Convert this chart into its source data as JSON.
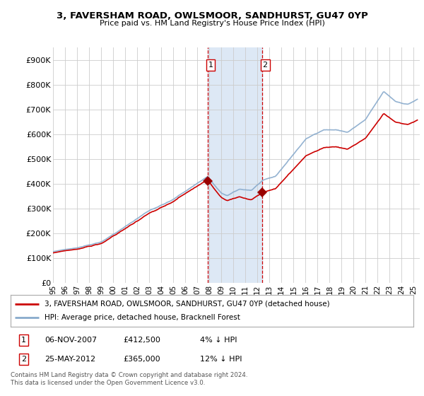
{
  "title": "3, FAVERSHAM ROAD, OWLSMOOR, SANDHURST, GU47 0YP",
  "subtitle": "Price paid vs. HM Land Registry's House Price Index (HPI)",
  "ylabel_ticks": [
    "£0",
    "£100K",
    "£200K",
    "£300K",
    "£400K",
    "£500K",
    "£600K",
    "£700K",
    "£800K",
    "£900K"
  ],
  "ytick_vals": [
    0,
    100000,
    200000,
    300000,
    400000,
    500000,
    600000,
    700000,
    800000,
    900000
  ],
  "ylim": [
    0,
    950000
  ],
  "sale1_date": 2007.85,
  "sale1_price": 412500,
  "sale1_label": "1",
  "sale2_date": 2012.39,
  "sale2_price": 365000,
  "sale2_label": "2",
  "shade_xmin": 2007.85,
  "shade_xmax": 2012.39,
  "line_color_property": "#cc0000",
  "line_color_hpi": "#88aacc",
  "marker_color_sale": "#990000",
  "vline_color": "#cc0000",
  "shade_color": "#dde8f5",
  "legend_label_property": "3, FAVERSHAM ROAD, OWLSMOOR, SANDHURST, GU47 0YP (detached house)",
  "legend_label_hpi": "HPI: Average price, detached house, Bracknell Forest",
  "table_row1": [
    "1",
    "06-NOV-2007",
    "£412,500",
    "4% ↓ HPI"
  ],
  "table_row2": [
    "2",
    "25-MAY-2012",
    "£365,000",
    "12% ↓ HPI"
  ],
  "footer_text": "Contains HM Land Registry data © Crown copyright and database right 2024.\nThis data is licensed under the Open Government Licence v3.0.",
  "xmin": 1995.0,
  "xmax": 2025.5,
  "background_color": "#ffffff",
  "grid_color": "#cccccc"
}
